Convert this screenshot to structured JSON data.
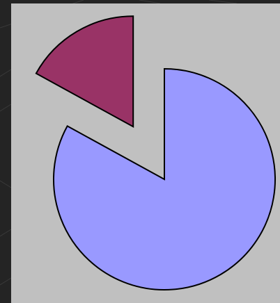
{
  "chart_data": {
    "type": "pie",
    "title": "",
    "exploded": true,
    "slices": [
      {
        "value": 83,
        "color": "#9999ff"
      },
      {
        "value": 17,
        "color": "#993366"
      }
    ]
  },
  "colors": {
    "background": "#242424",
    "plot_area": "#c0c0c0",
    "slice_outline": "#000000"
  }
}
